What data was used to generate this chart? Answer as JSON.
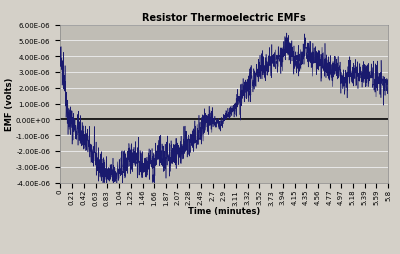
{
  "title": "Resistor Thermoelectric EMFs",
  "xlabel": "Time (minutes)",
  "ylabel": "EMF (volts)",
  "ylim": [
    -4e-06,
    6e-06
  ],
  "yticks": [
    -4e-06,
    -3e-06,
    -2e-06,
    -1e-06,
    0,
    1e-06,
    2e-06,
    3e-06,
    4e-06,
    5e-06,
    6e-06
  ],
  "line_color": "#1a1a6e",
  "background_color": "#d4d0c8",
  "plot_bg_color": "#c0bdb5",
  "grid_color": "#e8e8e8",
  "zero_line_color": "#000000",
  "xtick_labels": [
    "0",
    "0.21",
    "0.42",
    "0.63",
    "0.83",
    "1.04",
    "1.25",
    "1.46",
    "1.66",
    "1.87",
    "2.07",
    "2.28",
    "2.49",
    "2.7",
    "2.9",
    "3.11",
    "3.32",
    "3.52",
    "3.73",
    "3.94",
    "4.15",
    "4.35",
    "4.56",
    "4.77",
    "4.97",
    "5.18",
    "5.39",
    "5.59",
    "5.8"
  ],
  "seed": 42,
  "title_fontsize": 7,
  "axis_label_fontsize": 6,
  "tick_fontsize": 5
}
